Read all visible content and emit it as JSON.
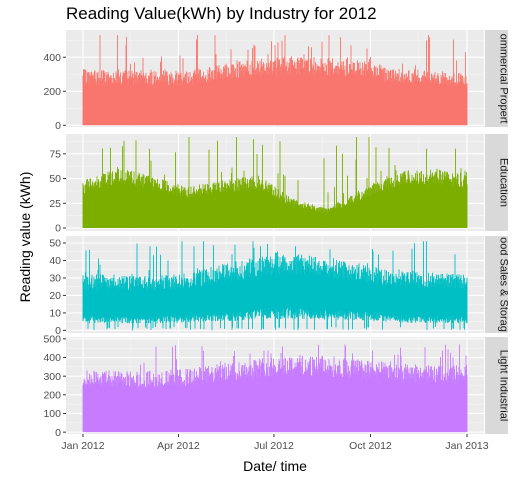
{
  "chart_data": {
    "type": "area",
    "title": "Reading Value(kWh) by Industry for 2012",
    "xlabel": "Date/ time",
    "ylabel": "Reading value (kWh)",
    "grid": true,
    "legend": "none",
    "x_range": [
      "2012-01-01",
      "2013-01-01"
    ],
    "x_ticks": [
      {
        "date": "2012-01-01",
        "label": "Jan 2012"
      },
      {
        "date": "2012-04-01",
        "label": "Apr 2012"
      },
      {
        "date": "2012-07-01",
        "label": "Jul 2012"
      },
      {
        "date": "2012-10-01",
        "label": "Oct 2012"
      },
      {
        "date": "2013-01-01",
        "label": "Jan 2013"
      }
    ],
    "panels": [
      {
        "strip_label": "Commercial Property",
        "strip_visible": "ommercial Propert",
        "color": "#F8766D",
        "ylim": [
          -10,
          560
        ],
        "y_ticks": [
          0,
          200,
          400
        ],
        "series_profile": {
          "months": [
            "Jan",
            "Feb",
            "Mar",
            "Apr",
            "May",
            "Jun",
            "Jul",
            "Aug",
            "Sep",
            "Oct",
            "Nov",
            "Dec"
          ],
          "typical_peak": [
            330,
            330,
            320,
            330,
            360,
            390,
            410,
            400,
            380,
            340,
            320,
            310
          ],
          "max_spike": 530,
          "min_value": 0
        }
      },
      {
        "strip_label": "Education",
        "strip_visible": "Education",
        "color": "#7CAE00",
        "ylim": [
          -3,
          95
        ],
        "y_ticks": [
          0,
          25,
          50,
          75
        ],
        "series_profile": {
          "months": [
            "Jan",
            "Feb",
            "Mar",
            "Apr",
            "May",
            "Jun",
            "Jul",
            "Aug",
            "Sep",
            "Oct",
            "Nov",
            "Dec"
          ],
          "typical_peak": [
            48,
            62,
            52,
            42,
            48,
            54,
            30,
            20,
            40,
            58,
            60,
            55
          ],
          "max_spike": 92,
          "min_value": 0
        }
      },
      {
        "strip_label": "Food Sales & Storage",
        "strip_visible": "ood Sales & Storag",
        "color": "#00BFC4",
        "ylim": [
          -1.5,
          54
        ],
        "y_ticks": [
          0,
          10,
          20,
          30,
          40,
          50
        ],
        "series_profile": {
          "months": [
            "Jan",
            "Feb",
            "Mar",
            "Apr",
            "May",
            "Jun",
            "Jul",
            "Aug",
            "Sep",
            "Oct",
            "Nov",
            "Dec"
          ],
          "typical_peak": [
            32,
            32,
            31,
            33,
            38,
            42,
            44,
            42,
            38,
            34,
            33,
            32
          ],
          "typical_low": [
            8,
            8,
            8,
            9,
            10,
            12,
            13,
            12,
            11,
            9,
            8,
            8
          ],
          "max_spike": 51,
          "min_value": 0
        }
      },
      {
        "strip_label": "Light Industrial",
        "strip_visible": "Light Industrial",
        "color": "#C77CFF",
        "ylim": [
          -10,
          510
        ],
        "y_ticks": [
          0,
          100,
          200,
          300,
          400,
          500
        ],
        "series_profile": {
          "months": [
            "Jan",
            "Feb",
            "Mar",
            "Apr",
            "May",
            "Jun",
            "Jul",
            "Aug",
            "Sep",
            "Oct",
            "Nov",
            "Dec"
          ],
          "typical_peak": [
            340,
            330,
            330,
            340,
            370,
            400,
            420,
            410,
            390,
            370,
            360,
            360
          ],
          "max_spike": 470,
          "min_value": 0
        }
      }
    ]
  }
}
